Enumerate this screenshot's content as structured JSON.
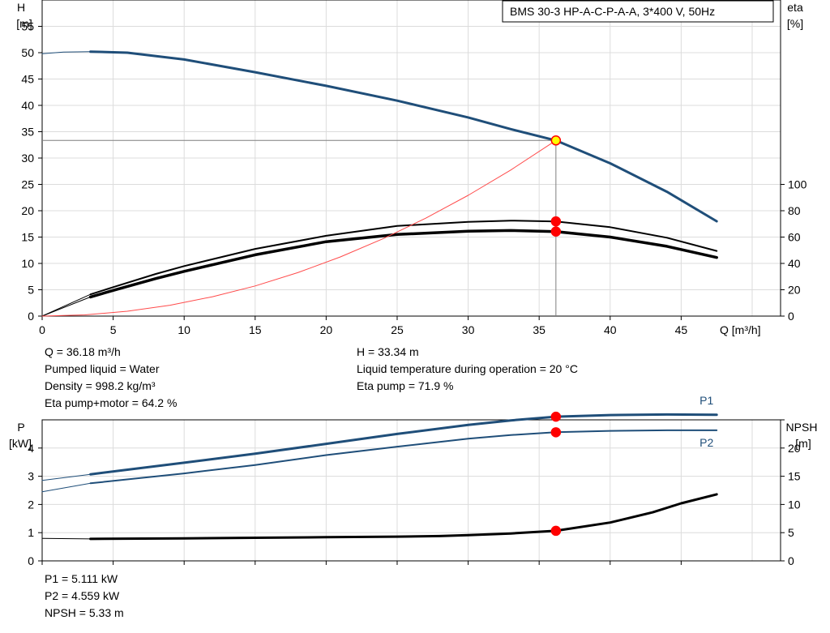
{
  "chart_data": [
    {
      "type": "line",
      "panel": "head-efficiency",
      "title": "BMS 30-3 HP-A-C-P-A-A, 3*400 V, 50Hz",
      "x_axis": {
        "label": "Q [m³/h]",
        "range": [
          0,
          52
        ],
        "ticks": [
          0,
          5,
          10,
          15,
          20,
          25,
          30,
          35,
          40,
          45
        ],
        "tick_labels": [
          "0",
          "5",
          "10",
          "15",
          "20",
          "25",
          "30",
          "35",
          "40",
          "45"
        ]
      },
      "y_axis_left": {
        "label_top": "H",
        "label_unit": "[m]",
        "range": [
          0,
          60
        ],
        "ticks": [
          0,
          5,
          10,
          15,
          20,
          25,
          30,
          35,
          40,
          45,
          50,
          55
        ],
        "tick_labels": [
          "0",
          "5",
          "10",
          "15",
          "20",
          "25",
          "30",
          "35",
          "40",
          "45",
          "50",
          "55"
        ]
      },
      "y_axis_right": {
        "label_top": "eta",
        "label_unit": "[%]",
        "range": [
          0,
          240
        ],
        "ticks": [
          0,
          20,
          40,
          60,
          80,
          100
        ],
        "tick_labels": [
          "0",
          "20",
          "40",
          "60",
          "80",
          "100"
        ]
      },
      "grid": true,
      "series": [
        {
          "axis": "left",
          "color": "#1f4e79",
          "width": 3,
          "points": [
            [
              3.4,
              50.2
            ],
            [
              6,
              50.0
            ],
            [
              10,
              48.7
            ],
            [
              15,
              46.3
            ],
            [
              20,
              43.7
            ],
            [
              25,
              40.9
            ],
            [
              30,
              37.7
            ],
            [
              33,
              35.5
            ],
            [
              36.18,
              33.34
            ],
            [
              40,
              29.0
            ],
            [
              44,
              23.6
            ],
            [
              47.5,
              18.0
            ]
          ]
        },
        {
          "axis": "left",
          "color": "#1f4e79",
          "width": 1,
          "points": [
            [
              0,
              49.8
            ],
            [
              1.5,
              50.1
            ],
            [
              3.4,
              50.2
            ]
          ]
        },
        {
          "axis": "right",
          "color": "#000000",
          "width": 2,
          "points": [
            [
              3.4,
              16.5
            ],
            [
              5,
              22
            ],
            [
              8,
              32
            ],
            [
              10,
              38
            ],
            [
              15,
              51
            ],
            [
              20,
              61
            ],
            [
              25,
              68.5
            ],
            [
              30,
              71.5
            ],
            [
              33,
              72.5
            ],
            [
              36.18,
              71.9
            ],
            [
              40,
              67.5
            ],
            [
              44,
              59.5
            ],
            [
              47.5,
              49.5
            ]
          ]
        },
        {
          "axis": "right",
          "color": "#000000",
          "width": 3.5,
          "points": [
            [
              3.4,
              14.5
            ],
            [
              5,
              19.5
            ],
            [
              8,
              28.5
            ],
            [
              10,
              34
            ],
            [
              15,
              46.5
            ],
            [
              20,
              56.5
            ],
            [
              25,
              62
            ],
            [
              30,
              64.5
            ],
            [
              33,
              65
            ],
            [
              36.18,
              64.2
            ],
            [
              40,
              60
            ],
            [
              44,
              53
            ],
            [
              47.5,
              44.5
            ]
          ]
        },
        {
          "axis": "right",
          "color": "#000000",
          "width": 1,
          "points": [
            [
              0,
              0
            ],
            [
              3.4,
              16.5
            ]
          ]
        },
        {
          "axis": "right",
          "color": "#000000",
          "width": 1,
          "points": [
            [
              0,
              0
            ],
            [
              3.4,
              14.5
            ]
          ]
        },
        {
          "axis": "left",
          "color": "#ff4a4a",
          "width": 1,
          "points": [
            [
              0,
              0
            ],
            [
              3,
              0.23
            ],
            [
              6,
              0.92
            ],
            [
              9,
              2.06
            ],
            [
              12,
              3.67
            ],
            [
              15,
              5.73
            ],
            [
              18,
              8.25
            ],
            [
              21,
              11.23
            ],
            [
              24,
              14.67
            ],
            [
              27,
              18.57
            ],
            [
              30,
              22.92
            ],
            [
              33,
              27.73
            ],
            [
              36.18,
              33.34
            ]
          ]
        }
      ],
      "operating_line": {
        "q": 36.18,
        "h": 33.34,
        "color": "#7f7f7f"
      },
      "markers": [
        {
          "axis": "left",
          "x": 36.18,
          "y": 33.34,
          "fill": "#ffff00",
          "stroke": "#ff0000"
        },
        {
          "axis": "right",
          "x": 36.18,
          "y": 71.9,
          "fill": "#ff0000",
          "stroke": "#ff0000"
        },
        {
          "axis": "right",
          "x": 36.18,
          "y": 64.2,
          "fill": "#ff0000",
          "stroke": "#ff0000"
        }
      ]
    },
    {
      "type": "line",
      "panel": "power-npsh",
      "x_axis": {
        "range": [
          0,
          52
        ],
        "ticks": [
          0,
          5,
          10,
          15,
          20,
          25,
          30,
          35,
          40,
          45
        ]
      },
      "y_axis_left": {
        "label_top": "P",
        "label_unit": "[kW]",
        "range": [
          0,
          5
        ],
        "ticks": [
          0,
          1,
          2,
          3,
          4
        ],
        "tick_labels": [
          "0",
          "1",
          "2",
          "3",
          "4"
        ]
      },
      "y_axis_right": {
        "label_top": "NPSH",
        "label_unit": "[m]",
        "range": [
          0,
          25
        ],
        "ticks": [
          0,
          5,
          10,
          15,
          20
        ],
        "tick_labels": [
          "0",
          "5",
          "10",
          "15",
          "20"
        ],
        "extra_tick_label": "",
        "partial_tick_label": "",
        "unit_line": "[m]"
      },
      "grid": true,
      "series": [
        {
          "name": "P1",
          "axis": "left",
          "color": "#1f4e79",
          "width": 3,
          "points": [
            [
              3.4,
              3.07
            ],
            [
              10,
              3.48
            ],
            [
              15,
              3.8
            ],
            [
              20,
              4.15
            ],
            [
              25,
              4.5
            ],
            [
              30,
              4.82
            ],
            [
              33,
              4.98
            ],
            [
              36.18,
              5.111
            ],
            [
              40,
              5.17
            ],
            [
              44,
              5.19
            ],
            [
              47.5,
              5.18
            ]
          ]
        },
        {
          "name": "P2",
          "axis": "left",
          "color": "#1f4e79",
          "width": 2,
          "points": [
            [
              3.4,
              2.75
            ],
            [
              10,
              3.1
            ],
            [
              15,
              3.4
            ],
            [
              20,
              3.75
            ],
            [
              25,
              4.05
            ],
            [
              30,
              4.33
            ],
            [
              33,
              4.46
            ],
            [
              36.18,
              4.559
            ],
            [
              40,
              4.61
            ],
            [
              44,
              4.63
            ],
            [
              47.5,
              4.63
            ]
          ]
        },
        {
          "axis": "left",
          "color": "#1f4e79",
          "width": 1,
          "points": [
            [
              0,
              2.85
            ],
            [
              3.4,
              3.07
            ]
          ]
        },
        {
          "axis": "left",
          "color": "#1f4e79",
          "width": 1,
          "points": [
            [
              0,
              2.45
            ],
            [
              3.4,
              2.75
            ]
          ]
        },
        {
          "name": "NPSH",
          "axis": "right",
          "color": "#000000",
          "width": 3,
          "points": [
            [
              3.4,
              3.9
            ],
            [
              10,
              4.0
            ],
            [
              15,
              4.1
            ],
            [
              20,
              4.2
            ],
            [
              25,
              4.3
            ],
            [
              28,
              4.4
            ],
            [
              30,
              4.55
            ],
            [
              33,
              4.85
            ],
            [
              36.18,
              5.33
            ],
            [
              40,
              6.8
            ],
            [
              43,
              8.6
            ],
            [
              45,
              10.2
            ],
            [
              47.5,
              11.8
            ]
          ]
        },
        {
          "axis": "right",
          "color": "#000000",
          "width": 1,
          "points": [
            [
              0,
              4.0
            ],
            [
              3.4,
              3.9
            ]
          ]
        }
      ],
      "series_labels": [
        {
          "text": "P1",
          "x": 46.3,
          "y": 5.55,
          "axis": "left"
        },
        {
          "text": "P2",
          "x": 46.3,
          "y": 4.05,
          "axis": "left"
        }
      ],
      "markers": [
        {
          "axis": "left",
          "x": 36.18,
          "y": 5.111,
          "fill": "#ff0000",
          "stroke": "#ff0000"
        },
        {
          "axis": "left",
          "x": 36.18,
          "y": 4.559,
          "fill": "#ff0000",
          "stroke": "#ff0000"
        },
        {
          "axis": "right",
          "x": 36.18,
          "y": 5.33,
          "fill": "#ff0000",
          "stroke": "#ff0000"
        }
      ]
    }
  ],
  "info_top_left": [
    "Q = 36.18 m³/h",
    "Pumped liquid = Water",
    "Density = 998.2 kg/m³",
    "Eta pump+motor = 64.2 %"
  ],
  "info_top_right": [
    "H = 33.34 m",
    "Liquid temperature during operation = 20 °C",
    "Eta pump = 71.9 %"
  ],
  "info_bottom": [
    "P1 = 5.111 kW",
    "P2 = 4.559 kW",
    "NPSH = 5.33 m"
  ]
}
